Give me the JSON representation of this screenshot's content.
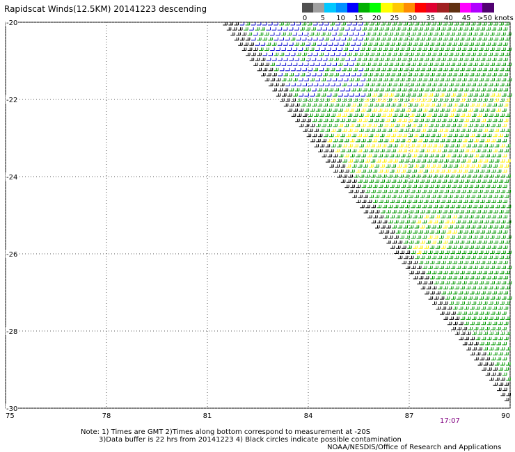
{
  "title": "Rapidscat Winds(12.5KM) 20141223 descending",
  "legend": {
    "labels": [
      "0",
      "5",
      "10",
      "15",
      "20",
      "25",
      "30",
      "35",
      "40",
      "45",
      ">50 knots"
    ],
    "colors": [
      "#505050",
      "#a0a0a0",
      "#00c8ff",
      "#0090ff",
      "#0000ff",
      "#00b000",
      "#00ff00",
      "#ffff00",
      "#ffc800",
      "#ff8c00",
      "#ff0000",
      "#e00030",
      "#a02020",
      "#603010",
      "#ff00ff",
      "#b000ff",
      "#500070"
    ]
  },
  "map": {
    "lon_ticks": [
      "75",
      "78",
      "81",
      "84",
      "87",
      "90"
    ],
    "lat_ticks": [
      "-20",
      "-22",
      "-24",
      "-26",
      "-28",
      "-30"
    ],
    "lon_range": [
      75,
      90
    ],
    "lat_range": [
      -30,
      -20
    ],
    "grid": "dotted",
    "swath_edge": [
      [
        81.4,
        -20
      ],
      [
        90,
        -30
      ]
    ],
    "barb_colors": {
      "light": "#0000cc",
      "moderate": "#009900",
      "fresh": "#ffee00",
      "contaminated": "#000000"
    }
  },
  "time_label": "17:07",
  "notes": {
    "line1": "Note: 1) Times are GMT 2)Times along bottom correspond to measurement at -20S",
    "line2": "3)Data buffer is 22 hrs from 20141223 4) Black circles indicate possible contamination",
    "credit": "NOAA/NESDIS/Office of Research and Applications"
  }
}
